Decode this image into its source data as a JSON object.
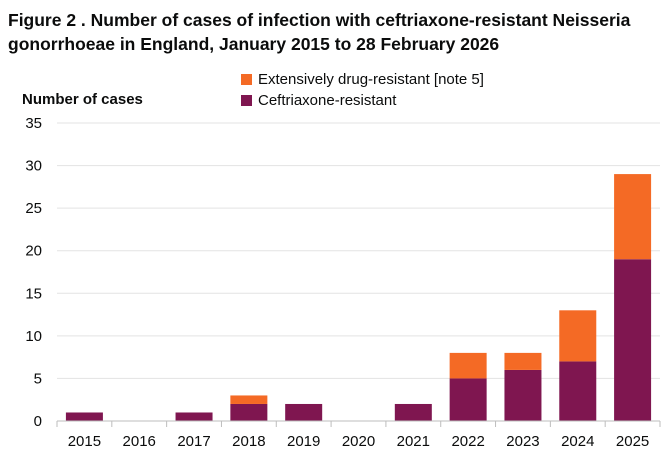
{
  "chart_data": {
    "type": "bar",
    "stacked": true,
    "title": "Figure 2 . Number of cases of infection with ceftriaxone-resistant Neisseria gonorrhoeae in England, January 2015 to 28 February 2026",
    "xlabel": "",
    "ylabel": "Number of cases",
    "ylim": [
      0,
      35
    ],
    "yticks": [
      0,
      5,
      10,
      15,
      20,
      25,
      30,
      35
    ],
    "grid": true,
    "legend_position": "top",
    "categories": [
      "2015",
      "2016",
      "2017",
      "2018",
      "2019",
      "2020",
      "2021",
      "2022",
      "2023",
      "2024",
      "2025"
    ],
    "series": [
      {
        "name": "Ceftriaxone-resistant",
        "color": "#7f1650",
        "values": [
          1,
          0,
          1,
          2,
          2,
          0,
          2,
          5,
          6,
          7,
          19
        ]
      },
      {
        "name": "Extensively drug-resistant [note 5]",
        "color": "#f46a25",
        "values": [
          0,
          0,
          0,
          1,
          0,
          0,
          0,
          3,
          2,
          6,
          10
        ]
      }
    ]
  }
}
